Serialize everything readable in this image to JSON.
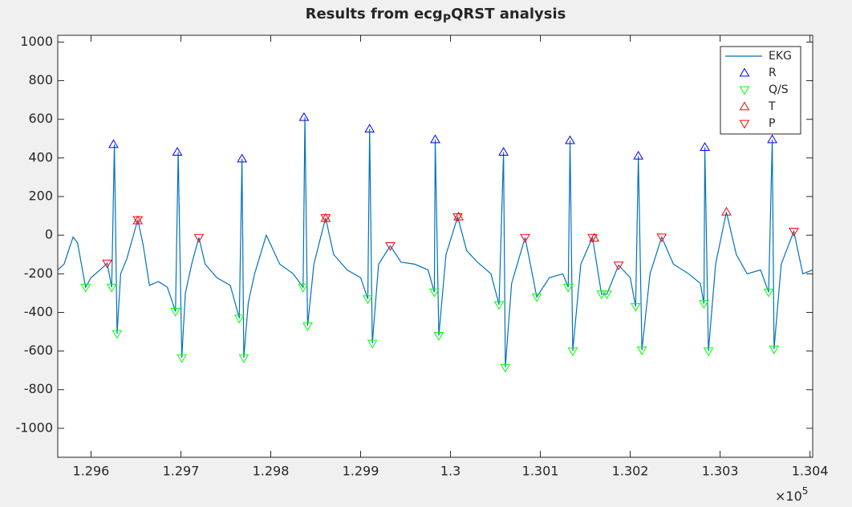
{
  "chart_data": {
    "type": "line",
    "title": [
      "Results from ecg",
      "P",
      "QRST analysis"
    ],
    "x_multiplier": "×10",
    "x_exponent": "5",
    "xlim": [
      129563,
      130403
    ],
    "ylim": [
      -1150,
      1035
    ],
    "xticks": [
      {
        "value": 129600,
        "label": "1.296"
      },
      {
        "value": 129700,
        "label": "1.297"
      },
      {
        "value": 129800,
        "label": "1.298"
      },
      {
        "value": 129900,
        "label": "1.299"
      },
      {
        "value": 130000,
        "label": "1.3"
      },
      {
        "value": 130100,
        "label": "1.301"
      },
      {
        "value": 130200,
        "label": "1.302"
      },
      {
        "value": 130300,
        "label": "1.303"
      },
      {
        "value": 130400,
        "label": "1.304"
      }
    ],
    "yticks": [
      -1000,
      -800,
      -600,
      -400,
      -200,
      0,
      200,
      400,
      600,
      800,
      1000
    ],
    "legend": "top-right",
    "series": [
      {
        "name": "EKG",
        "color": "#0072bd",
        "marker": "line",
        "x": [
          129563,
          129570,
          129580,
          129585,
          129594,
          129600,
          129610,
          129618,
          129623,
          129626,
          129629,
          129633,
          129640,
          129652,
          129658,
          129665,
          129675,
          129685,
          129694,
          129697,
          129701,
          129705,
          129712,
          129720,
          129727,
          129740,
          129755,
          129765,
          129768,
          129770,
          129775,
          129782,
          129795,
          129810,
          129825,
          129836,
          129838,
          129841,
          129848,
          129861,
          129870,
          129885,
          129900,
          129908,
          129910,
          129913,
          129920,
          129933,
          129945,
          129960,
          129975,
          129982,
          129983,
          129987,
          129995,
          130008,
          130018,
          130030,
          130045,
          130054,
          130059,
          130061,
          130068,
          130083,
          130096,
          130110,
          130125,
          130131,
          130133,
          130136,
          130145,
          130158,
          130168,
          130174,
          130187,
          130200,
          130206,
          130209,
          130213,
          130222,
          130235,
          130248,
          130265,
          130278,
          130282,
          130283,
          130287,
          130295,
          130307,
          130318,
          130330,
          130345,
          130354,
          130358,
          130360,
          130368,
          130382,
          130392,
          130403
        ],
        "values": [
          -180,
          -150,
          -10,
          -40,
          -270,
          -220,
          -180,
          -145,
          -270,
          470,
          -510,
          -200,
          -120,
          80,
          -50,
          -260,
          -240,
          -270,
          -395,
          430,
          -635,
          -300,
          -150,
          -12,
          -150,
          -220,
          -260,
          -430,
          395,
          -635,
          -350,
          -200,
          0,
          -150,
          -200,
          -270,
          610,
          -470,
          -150,
          90,
          -100,
          -180,
          -220,
          -330,
          550,
          -560,
          -150,
          -55,
          -140,
          -150,
          -180,
          -295,
          495,
          -520,
          -100,
          95,
          -80,
          -140,
          -200,
          -360,
          430,
          -685,
          -250,
          -12,
          -320,
          -220,
          -200,
          -270,
          490,
          -600,
          -150,
          -12,
          -305,
          -305,
          -155,
          -220,
          -370,
          410,
          -595,
          -200,
          -10,
          -150,
          -200,
          -250,
          -355,
          455,
          -600,
          -150,
          120,
          -100,
          -200,
          -180,
          -295,
          495,
          -590,
          -150,
          20,
          -200,
          -180
        ]
      },
      {
        "name": "R",
        "color": "#0000ff",
        "marker": "triangle-up",
        "x": [
          129625,
          129696,
          129768,
          129837,
          129910,
          129983,
          130059,
          130133,
          130209,
          130283,
          130358
        ],
        "values": [
          470,
          430,
          395,
          610,
          550,
          495,
          430,
          490,
          410,
          455,
          495
        ]
      },
      {
        "name": "Q/S",
        "color": "#00ff00",
        "marker": "triangle-down",
        "x": [
          129594,
          129623,
          129629,
          129694,
          129701,
          129765,
          129770,
          129836,
          129841,
          129908,
          129913,
          129982,
          129987,
          130054,
          130061,
          130096,
          130131,
          130136,
          130168,
          130174,
          130206,
          130213,
          130282,
          130287,
          130354,
          130360
        ],
        "values": [
          -270,
          -270,
          -510,
          -395,
          -635,
          -430,
          -635,
          -270,
          -470,
          -330,
          -560,
          -295,
          -520,
          -360,
          -685,
          -320,
          -270,
          -600,
          -305,
          -305,
          -370,
          -595,
          -355,
          -600,
          -295,
          -590
        ]
      },
      {
        "name": "T",
        "color": "#ff0000",
        "marker": "triangle-up",
        "x": [
          129652,
          129861,
          130009,
          130160,
          130307
        ],
        "values": [
          75,
          87,
          95,
          -15,
          120
        ]
      },
      {
        "name": "P",
        "color": "#ff0000",
        "marker": "triangle-down",
        "x": [
          129618,
          129652,
          129720,
          129861,
          129933,
          130008,
          130083,
          130158,
          130187,
          130235,
          130382
        ],
        "values": [
          -145,
          80,
          -12,
          90,
          -55,
          95,
          -12,
          -12,
          -155,
          -10,
          20
        ]
      }
    ]
  }
}
